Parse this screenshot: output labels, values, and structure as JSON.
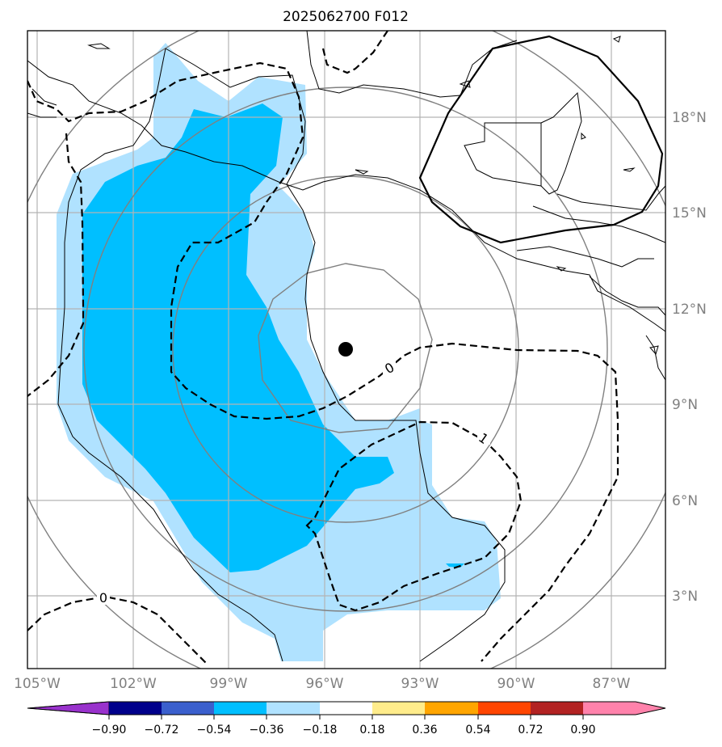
{
  "title": "2025062700 F012",
  "lon_labels": [
    "105°W",
    "102°W",
    "99°W",
    "96°W",
    "93°W",
    "90°W",
    "87°W"
  ],
  "lat_labels": [
    "18°N",
    "15°N",
    "12°N",
    "9°N",
    "6°N",
    "3°N"
  ],
  "contour_labels": [
    "0",
    "1",
    "0"
  ],
  "colorbar": {
    "tick_labels": [
      "−0.90",
      "−0.72",
      "−0.54",
      "−0.36",
      "−0.18",
      "0.18",
      "0.36",
      "0.54",
      "0.72",
      "0.90"
    ],
    "colors": [
      "#9932cc",
      "#00008b",
      "#3a5fcd",
      "#00bfff",
      "#b0e2ff",
      "#ffffff",
      "#ffec8b",
      "#ffa500",
      "#ff4500",
      "#b22222",
      "#ff82ab"
    ]
  },
  "fill_colors": {
    "light": "#b0e2ff",
    "dark": "#00bfff"
  },
  "center_marker": "storm-center-dot"
}
